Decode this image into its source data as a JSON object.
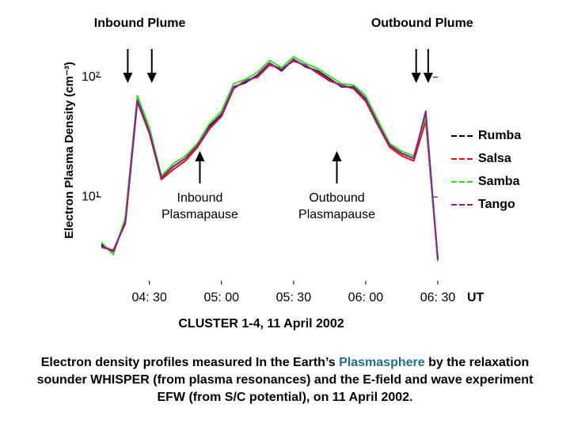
{
  "chart_data": {
    "type": "line",
    "y_label": "Electron Plasma Density (cm⁻³)",
    "x_label": "UT",
    "subtitle": "CLUSTER 1-4, 11 April 2002",
    "caption": [
      "Electron density profiles measured In the Earth’s ",
      "Plasmasphere",
      " by the relaxation sounder WHISPER (from plasma resonances) and the E-field and wave experiment EFW (from S/C potential), on 11 April 2002."
    ],
    "caption_highlight_color": "#1f6f8b",
    "log_y": true,
    "xlim": [
      "04:10",
      "06:30"
    ],
    "xticks": [
      {
        "value": "04:30",
        "label": "04: 30"
      },
      {
        "value": "05:00",
        "label": "05: 00"
      },
      {
        "value": "05:30",
        "label": "05: 30"
      },
      {
        "value": "06:00",
        "label": "06: 00"
      },
      {
        "value": "06:30",
        "label": "06: 30"
      }
    ],
    "ylim": [
      2,
      200
    ],
    "yticks": [
      {
        "value": 10,
        "label": "10¹"
      },
      {
        "value": 100,
        "label": "10²"
      }
    ],
    "x": [
      "04:10",
      "04:15",
      "04:20",
      "04:25",
      "04:30",
      "04:35",
      "04:40",
      "04:45",
      "04:50",
      "04:55",
      "05:00",
      "05:05",
      "05:10",
      "05:15",
      "05:20",
      "05:25",
      "05:30",
      "05:35",
      "05:40",
      "05:45",
      "05:50",
      "05:55",
      "06:00",
      "06:05",
      "06:10",
      "06:15",
      "06:20",
      "06:25",
      "06:30"
    ],
    "series": [
      {
        "name": "Rumba",
        "color": "#000000",
        "values": [
          4.0,
          3.5,
          6.4,
          66,
          36,
          14.6,
          18,
          21,
          27,
          39,
          49,
          83,
          90,
          104,
          131,
          113,
          141,
          122,
          113,
          97,
          83,
          83,
          66,
          42,
          27,
          23,
          21,
          45,
          3.0
        ]
      },
      {
        "name": "Salsa",
        "color": "#e01010",
        "values": [
          3.8,
          3.6,
          6.0,
          62,
          34,
          14,
          17,
          20,
          26,
          37,
          47,
          80,
          94,
          100,
          126,
          118,
          136,
          126,
          108,
          93,
          86,
          80,
          63,
          40,
          26,
          22,
          20,
          43,
          3.1
        ]
      },
      {
        "name": "Samba",
        "color": "#33dd22",
        "values": [
          4.2,
          3.3,
          6.8,
          70,
          38,
          15,
          19,
          22,
          28,
          41,
          52,
          88,
          96,
          110,
          138,
          120,
          148,
          130,
          118,
          102,
          88,
          86,
          70,
          44,
          28,
          24,
          22,
          47,
          2.9
        ]
      },
      {
        "name": "Tango",
        "color": "#8a1f9c",
        "values": [
          3.9,
          3.5,
          6.2,
          64,
          35,
          14.4,
          18,
          21,
          27,
          38,
          48,
          82,
          92,
          102,
          130,
          115,
          140,
          124,
          111,
          95,
          84,
          82,
          65,
          41,
          27,
          23,
          21,
          52,
          3.0
        ]
      }
    ],
    "legend": "right",
    "markers": [
      {
        "label": "Inbound Plume",
        "direction": "down",
        "x": [
          "04:21",
          "04:31"
        ]
      },
      {
        "label": "Outbound Plume",
        "direction": "down",
        "x": [
          "06:21",
          "06:26"
        ]
      },
      {
        "label": [
          "Inbound",
          "Plasmapause"
        ],
        "direction": "up",
        "x": [
          "04:51"
        ]
      },
      {
        "label": [
          "Outbound",
          "Plasmapause"
        ],
        "direction": "up",
        "x": [
          "05:48"
        ]
      }
    ]
  }
}
